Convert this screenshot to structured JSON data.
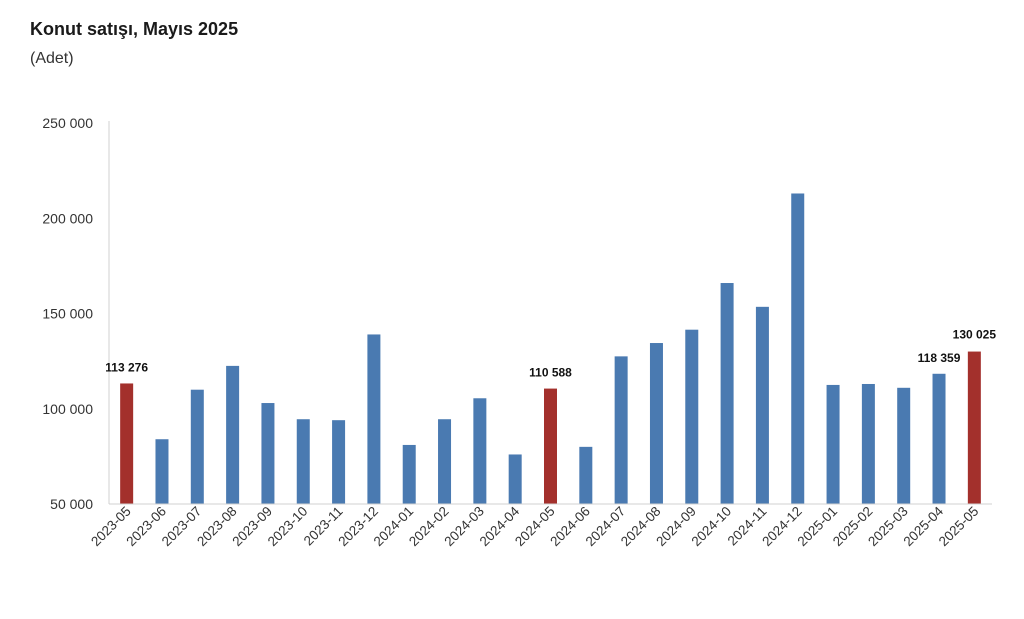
{
  "header": {
    "title": "Konut satışı, Mayıs 2025",
    "subtitle": "(Adet)"
  },
  "colors": {
    "regular_bar": "#4a7ab1",
    "highlight_bar": "#a3302c",
    "axis": "#d0d0d0"
  },
  "chart_data": {
    "type": "bar",
    "title": "Konut satışı, Mayıs 2025",
    "subtitle": "(Adet)",
    "xlabel": "",
    "ylabel": "",
    "ylim": [
      50000,
      250000
    ],
    "yticks": [
      50000,
      100000,
      150000,
      200000,
      250000
    ],
    "ytick_labels": [
      "50 000",
      "100 000",
      "150 000",
      "200 000",
      "250 000"
    ],
    "grid": false,
    "categories": [
      "2023-05",
      "2023-06",
      "2023-07",
      "2023-08",
      "2023-09",
      "2023-10",
      "2023-11",
      "2023-12",
      "2024-01",
      "2024-02",
      "2024-03",
      "2024-04",
      "2024-05",
      "2024-06",
      "2024-07",
      "2024-08",
      "2024-09",
      "2024-10",
      "2024-11",
      "2024-12",
      "2025-01",
      "2025-02",
      "2025-03",
      "2025-04",
      "2025-05"
    ],
    "values": [
      113276,
      84000,
      110000,
      122500,
      103000,
      94500,
      94000,
      139000,
      81000,
      94500,
      105500,
      76000,
      110588,
      80000,
      127500,
      134500,
      141500,
      166000,
      153500,
      213000,
      112500,
      113000,
      111000,
      118359,
      130025
    ],
    "highlighted": [
      "2023-05",
      "2024-05",
      "2025-05"
    ],
    "data_labels": [
      {
        "category": "2023-05",
        "text": "113 276"
      },
      {
        "category": "2024-05",
        "text": "110 588"
      },
      {
        "category": "2025-04",
        "text": "118 359"
      },
      {
        "category": "2025-05",
        "text": "130 025"
      }
    ]
  }
}
